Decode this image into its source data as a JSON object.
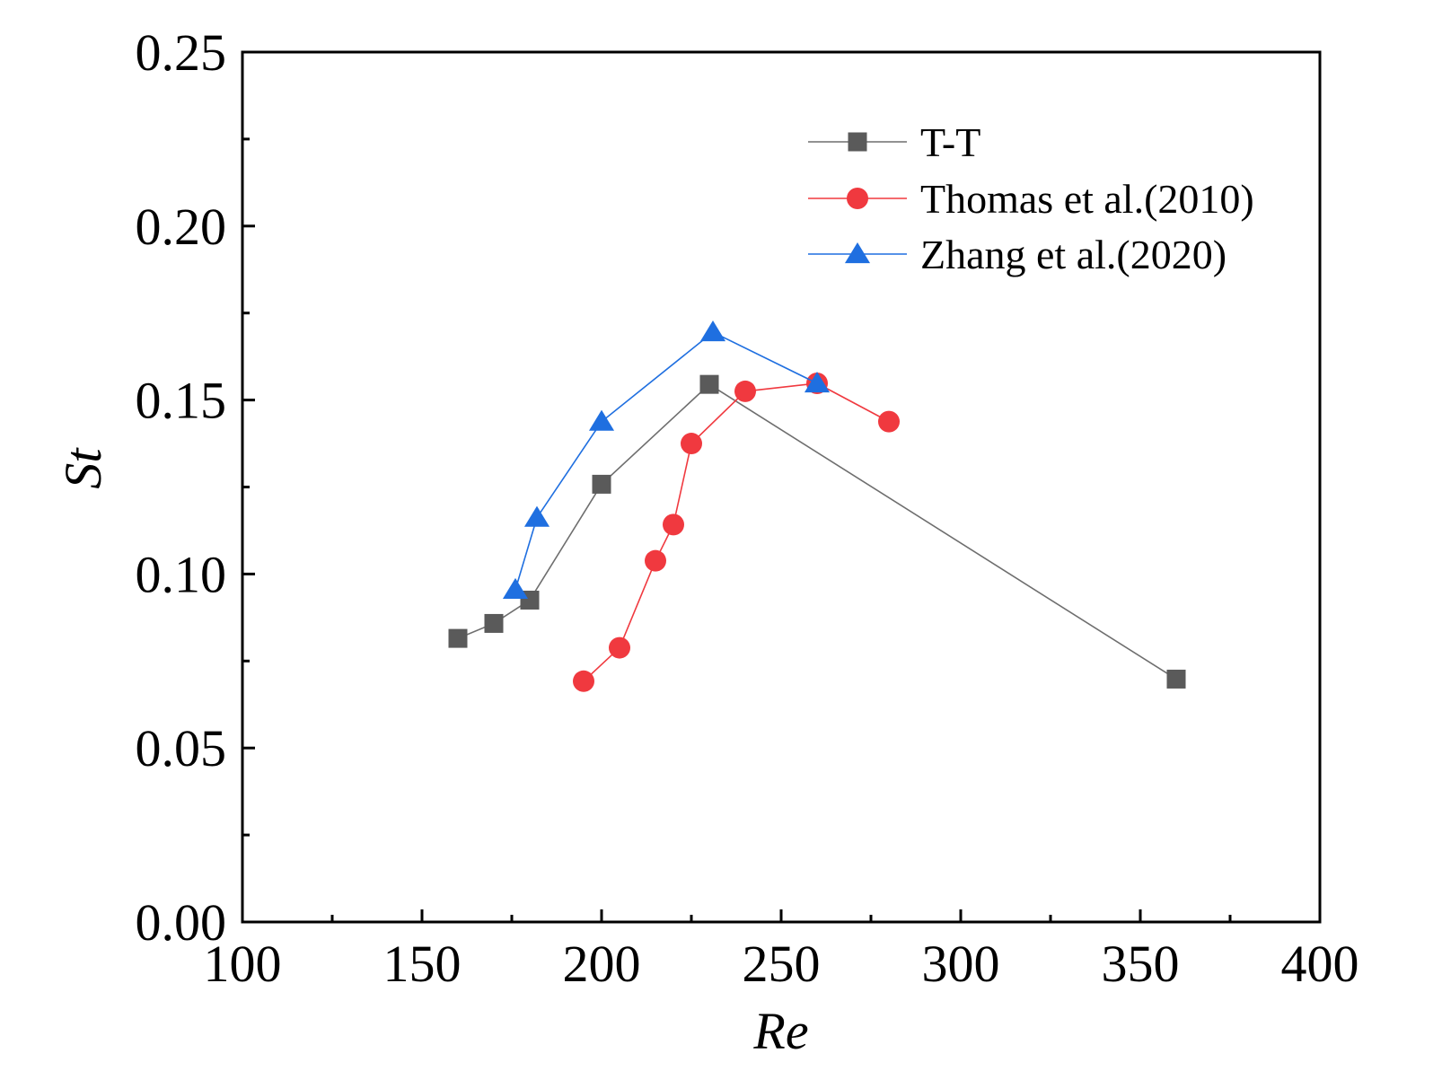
{
  "chart_data": {
    "type": "line",
    "title": "",
    "xlabel": "Re",
    "ylabel": "St",
    "xlim": [
      100,
      400
    ],
    "ylim": [
      0.0,
      0.25
    ],
    "x_ticks": [
      100,
      150,
      200,
      250,
      300,
      350,
      400
    ],
    "x_tick_labels": [
      "100",
      "150",
      "200",
      "250",
      "300",
      "350",
      "400"
    ],
    "y_ticks": [
      0.0,
      0.05,
      0.1,
      0.15,
      0.2,
      0.25
    ],
    "y_tick_labels": [
      "0.00",
      "0.05",
      "0.10",
      "0.15",
      "0.20",
      "0.25"
    ],
    "x_minor_ticks": [
      125,
      175,
      225,
      275,
      325,
      375
    ],
    "y_minor_ticks": [
      0.025,
      0.075,
      0.125,
      0.175,
      0.225
    ],
    "grid": false,
    "legend_position": "top-right",
    "series": [
      {
        "name": "T-T",
        "marker": "square",
        "color": "#5a5a5a",
        "line_color": "#6e6e6e",
        "x": [
          160,
          170,
          180,
          200,
          230,
          360
        ],
        "y": [
          0.0815,
          0.0858,
          0.0925,
          0.1258,
          0.1545,
          0.0698
        ]
      },
      {
        "name": "Thomas et al.(2010)",
        "marker": "circle",
        "color": "#f0393f",
        "line_color": "#f0393f",
        "x": [
          195,
          205,
          215,
          220,
          225,
          240,
          260,
          280
        ],
        "y": [
          0.0692,
          0.0788,
          0.1038,
          0.1142,
          0.1375,
          0.1525,
          0.1548,
          0.1438
        ]
      },
      {
        "name": "Zhang et al.(2020)",
        "marker": "triangle",
        "color": "#1f6fe0",
        "line_color": "#1f6fe0",
        "x": [
          176,
          182,
          200,
          231,
          260
        ],
        "y": [
          0.0955,
          0.1162,
          0.1438,
          0.1695,
          0.1548
        ]
      }
    ]
  }
}
